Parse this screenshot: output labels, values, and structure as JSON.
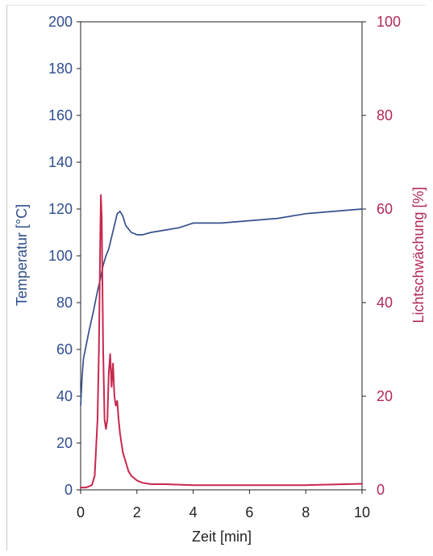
{
  "chart_data": {
    "type": "line",
    "title": "",
    "xlabel": "Zeit [min]",
    "ylabel_left": "Temperatur [°C]",
    "ylabel_right": "Lichtschwächung [%]",
    "xlim": [
      0,
      10
    ],
    "ylim_left": [
      0,
      200
    ],
    "ylim_right": [
      0,
      100
    ],
    "x_ticks": [
      "0",
      "2",
      "4",
      "6",
      "8",
      "10"
    ],
    "y_ticks_left": [
      "0",
      "20",
      "40",
      "60",
      "80",
      "100",
      "120",
      "140",
      "160",
      "180",
      "200"
    ],
    "y_ticks_right": [
      "0",
      "20",
      "40",
      "60",
      "80",
      "100"
    ],
    "grid": false,
    "colors": {
      "temperature": "#35508c",
      "light": "#c8284e",
      "left_axis_text": "#2f4f8f",
      "right_axis_text": "#b22a55",
      "axis": "#222222"
    },
    "series": [
      {
        "axis": "left",
        "x": [
          0,
          0.05,
          0.1,
          0.2,
          0.3,
          0.45,
          0.6,
          0.7,
          0.8,
          0.9,
          1.0,
          1.1,
          1.2,
          1.3,
          1.4,
          1.5,
          1.6,
          1.8,
          2.0,
          2.2,
          2.5,
          3.0,
          3.5,
          4.0,
          5.0,
          6.0,
          7.0,
          8.0,
          9.0,
          10.0
        ],
        "values": [
          36,
          48,
          56,
          62,
          68,
          76,
          85,
          90,
          96,
          100,
          103,
          108,
          113,
          118,
          119,
          117,
          113,
          110,
          109,
          109,
          110,
          111,
          112,
          114,
          114,
          115,
          116,
          118,
          119,
          120
        ]
      },
      {
        "axis": "right",
        "x": [
          0,
          0.2,
          0.4,
          0.5,
          0.6,
          0.65,
          0.7,
          0.72,
          0.75,
          0.8,
          0.85,
          0.9,
          0.95,
          1.0,
          1.05,
          1.1,
          1.15,
          1.2,
          1.25,
          1.3,
          1.35,
          1.4,
          1.5,
          1.6,
          1.7,
          1.8,
          2.0,
          2.2,
          2.5,
          3.0,
          4.0,
          6.0,
          8.0,
          10.0
        ],
        "values": [
          0.5,
          0.5,
          1,
          3,
          15,
          30,
          55,
          63,
          58,
          30,
          15,
          13,
          15,
          25,
          29,
          22,
          27,
          20,
          18,
          19,
          15,
          12,
          8,
          6,
          4,
          3,
          2,
          1.5,
          1.2,
          1.2,
          1.0,
          1.0,
          1.0,
          1.3
        ]
      }
    ]
  }
}
